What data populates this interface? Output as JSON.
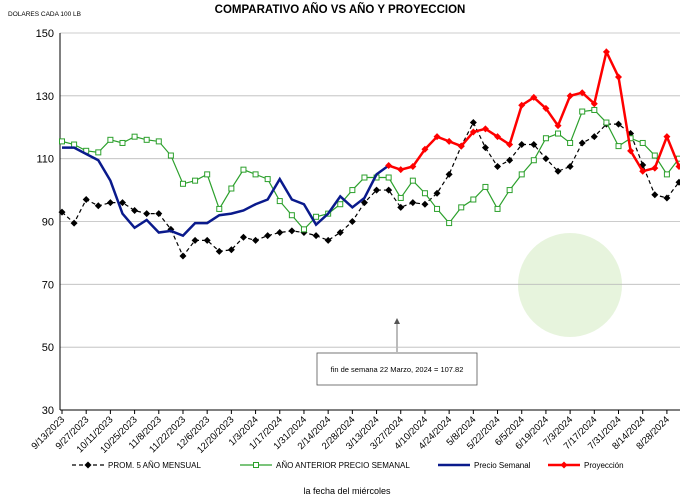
{
  "chart_data": {
    "type": "line",
    "title": "COMPARATIVO AÑO VS  AÑO Y PROYECCION",
    "y_label": "DOLARES CADA 100 LB",
    "x_label": "la fecha del miércoles",
    "annotation": "fin de semana 22 Marzo, 2024 = 107.82",
    "categories": [
      "9/13/2023",
      null,
      "9/27/2023",
      null,
      "10/11/2023",
      null,
      "10/25/2023",
      null,
      "11/8/2023",
      null,
      "11/22/2023",
      null,
      "12/6/2023",
      null,
      "12/20/2023",
      null,
      "1/3/2024",
      null,
      "1/17/2024",
      null,
      "1/31/2024",
      null,
      "2/14/2024",
      null,
      "2/28/2024",
      null,
      "3/13/2024",
      null,
      "3/27/2024",
      null,
      "4/10/2024",
      null,
      "4/24/2024",
      null,
      "5/8/2024",
      null,
      "5/22/2024",
      null,
      "6/5/2024",
      null,
      "6/19/2024",
      null,
      "7/3/2024",
      null,
      "7/17/2024",
      null,
      "7/31/2024",
      null,
      "8/14/2024",
      null,
      "8/28/2024",
      null
    ],
    "ylim": [
      30,
      150
    ],
    "yticks": [
      30,
      50,
      70,
      90,
      110,
      130,
      150
    ],
    "series": [
      {
        "name": "PROM. 5 AÑO MENSUAL",
        "color": "#000000",
        "dash": true,
        "marker": "diamond",
        "values": [
          93,
          89.5,
          97,
          95,
          96,
          96,
          93.5,
          92.5,
          92.5,
          87.5,
          79,
          84,
          84,
          80.5,
          81,
          85,
          84,
          85.5,
          86.5,
          87,
          86.5,
          85.5,
          84,
          86.5,
          90,
          96,
          100,
          100,
          94.5,
          96,
          95.5,
          99,
          105,
          114,
          121.5,
          113.5,
          107.5,
          109.5,
          114.5,
          114.5,
          110,
          106,
          107.5,
          115,
          117,
          121,
          121,
          118,
          108,
          98.5,
          97.5,
          102.5
        ]
      },
      {
        "name": "AÑO ANTERIOR PRECIO SEMANAL",
        "color": "#2ca02c",
        "dash": false,
        "marker": "square",
        "values": [
          115.5,
          114.5,
          112.5,
          112,
          116,
          115,
          117,
          116,
          115.5,
          111,
          102,
          103,
          105,
          94,
          100.5,
          106.5,
          105,
          103.5,
          96.5,
          92,
          87.5,
          91.5,
          92.5,
          95.5,
          100,
          104,
          104,
          104,
          97.5,
          103,
          99,
          94,
          89.5,
          94.5,
          97,
          101,
          94,
          100,
          105,
          109.5,
          116.5,
          118,
          115,
          125,
          125.5,
          121.5,
          114,
          116.5,
          115,
          111,
          105,
          110
        ]
      },
      {
        "name": "Precio Semanal",
        "color": "#0a1a8c",
        "dash": false,
        "marker": "none",
        "values": [
          113.5,
          113.5,
          111.5,
          109.5,
          103,
          92.5,
          88,
          90.5,
          86.5,
          87,
          85.5,
          89.5,
          89.5,
          92,
          92.5,
          93.5,
          95.5,
          97,
          103.5,
          97,
          95.5,
          89,
          92.5,
          98,
          94.5,
          97.5,
          105,
          107.82,
          null,
          null,
          null,
          null,
          null,
          null,
          null,
          null,
          null,
          null,
          null,
          null,
          null,
          null,
          null,
          null,
          null,
          null,
          null,
          null,
          null,
          null,
          null,
          null
        ]
      },
      {
        "name": "Proyección",
        "color": "#ff0000",
        "dash": false,
        "marker": "diamond",
        "values": [
          null,
          null,
          null,
          null,
          null,
          null,
          null,
          null,
          null,
          null,
          null,
          null,
          null,
          null,
          null,
          null,
          null,
          null,
          null,
          null,
          null,
          null,
          null,
          null,
          null,
          null,
          null,
          107.82,
          106.5,
          107.5,
          113,
          117,
          115.5,
          114,
          118.5,
          119.5,
          117,
          114.5,
          127,
          129.5,
          126,
          120.5,
          130,
          131,
          127.5,
          144,
          136,
          112.5,
          106,
          107,
          117,
          107.5
        ]
      }
    ]
  }
}
